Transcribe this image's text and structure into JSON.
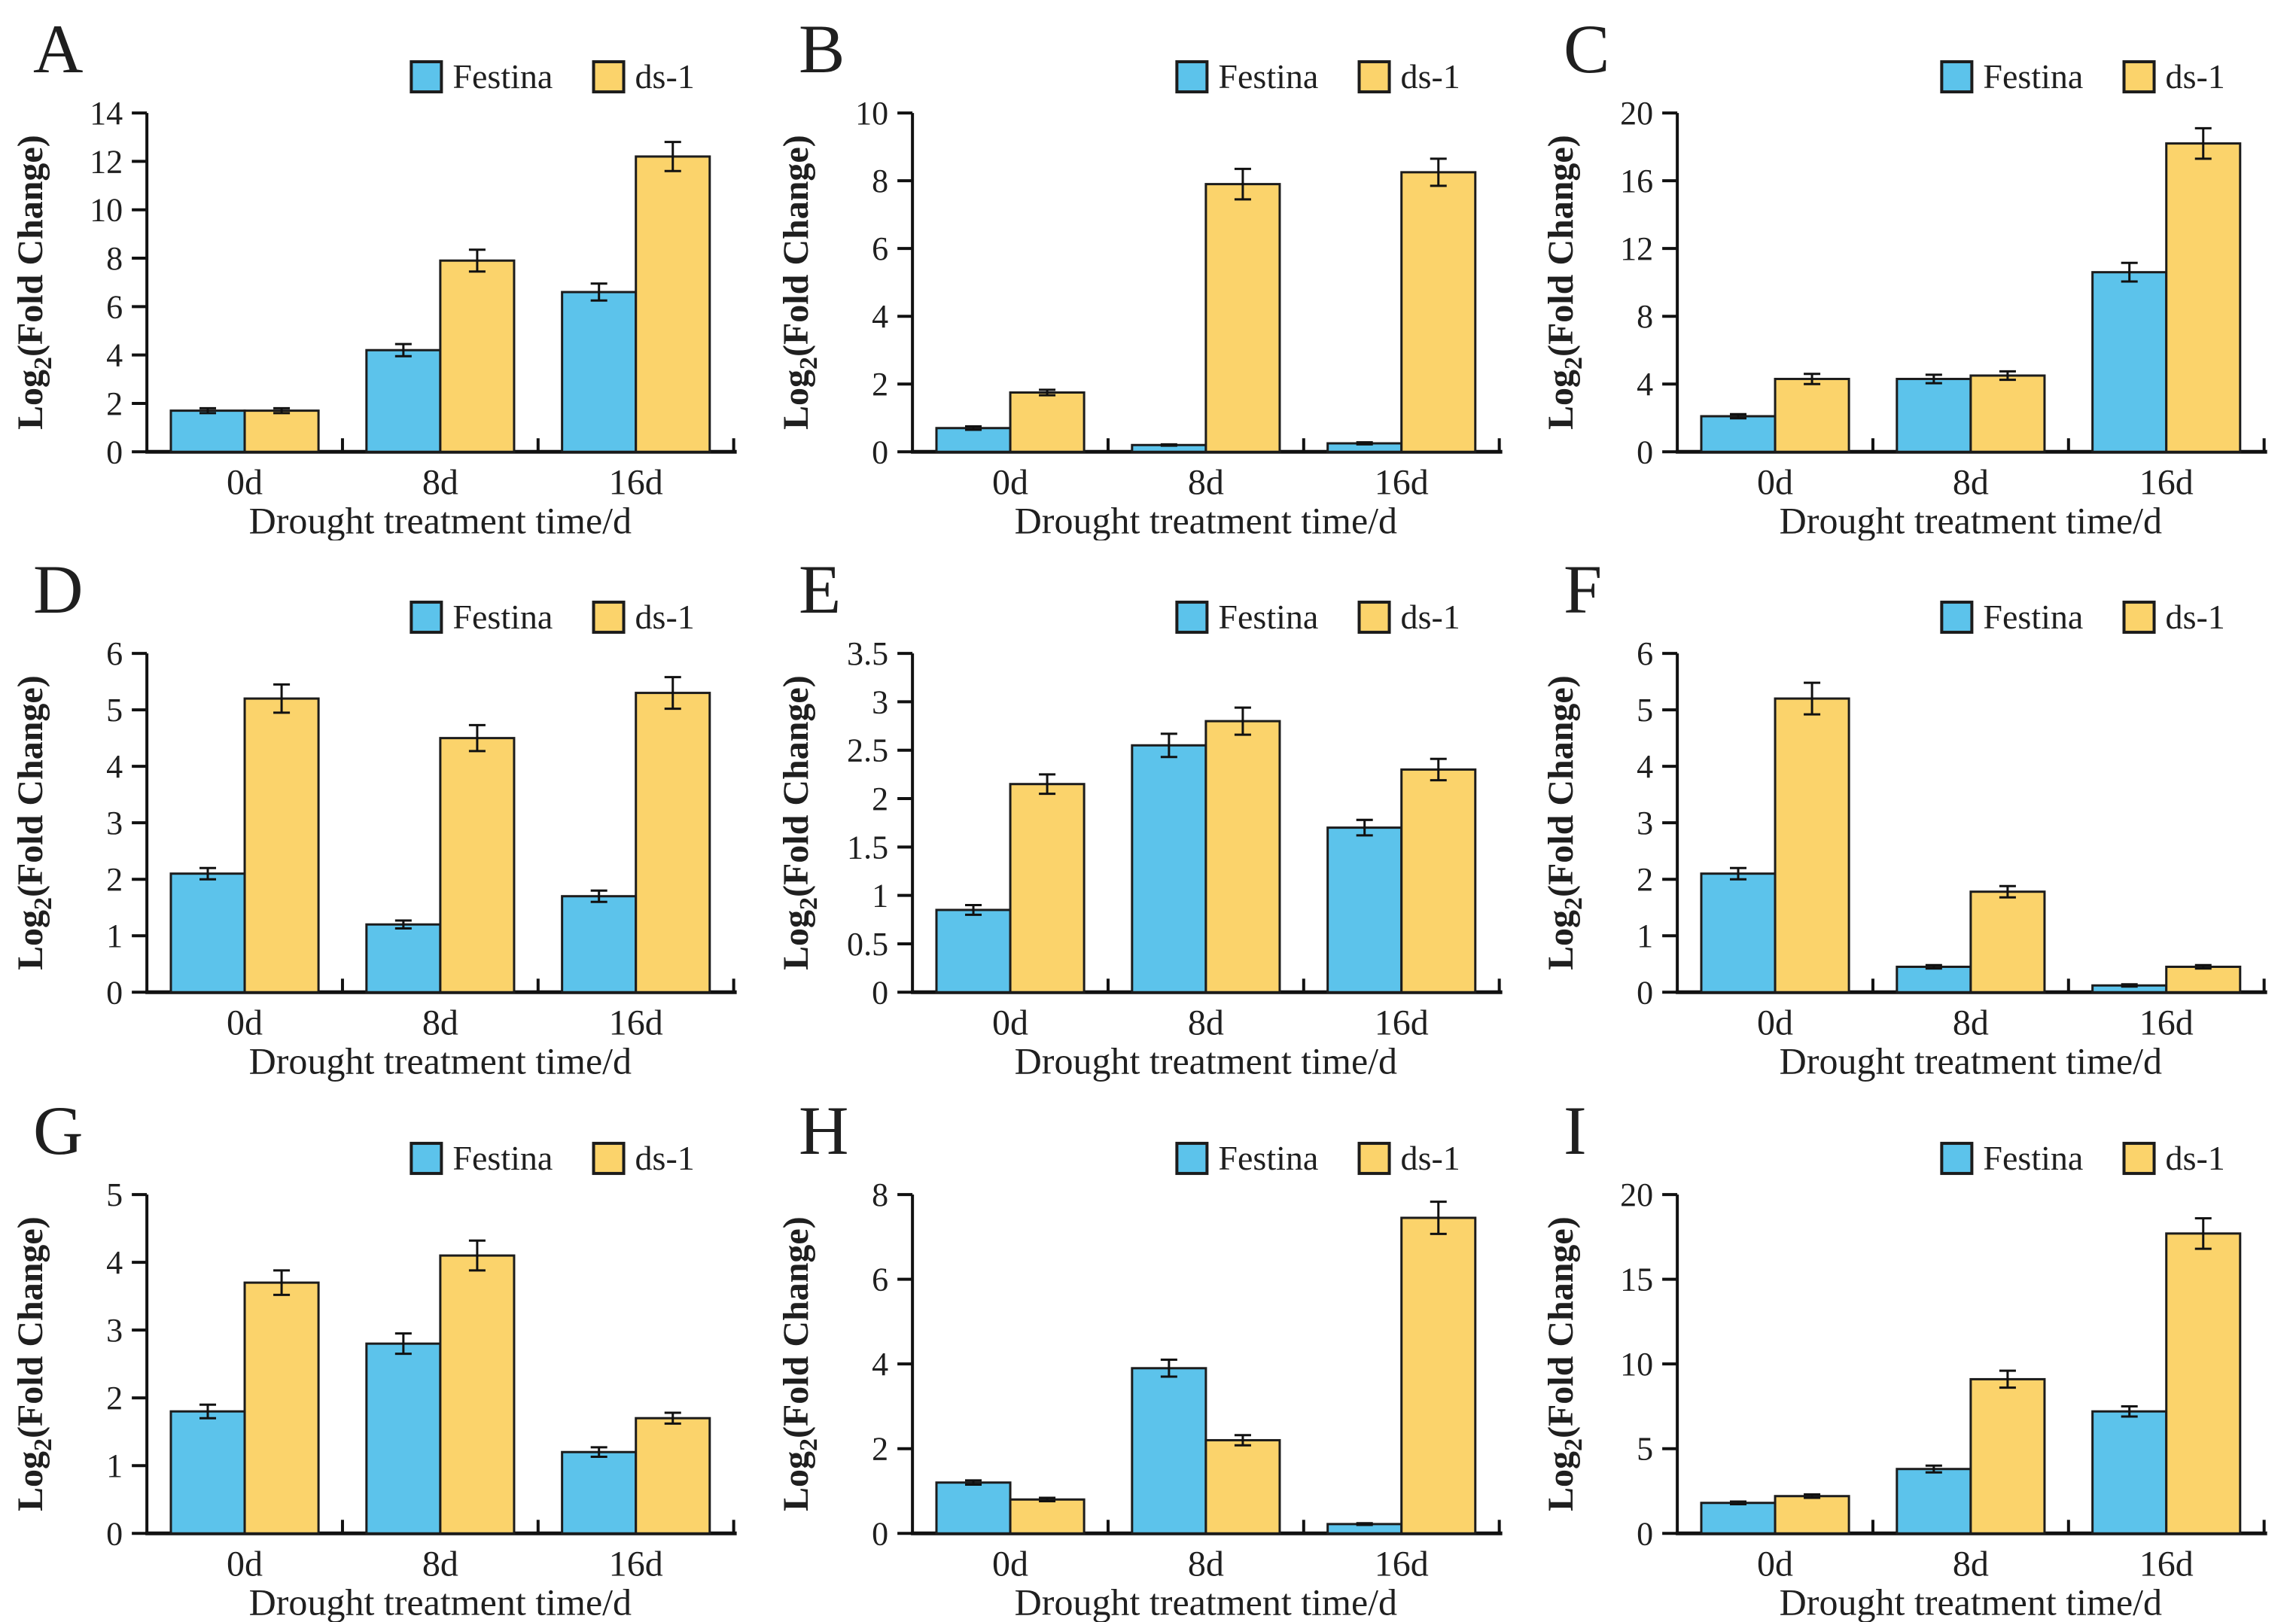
{
  "figure": {
    "series_names": [
      "Festina",
      "ds-1"
    ],
    "xlabel": "Drought treatment time/d",
    "ylabel_pre": "Log",
    "ylabel_sub": "2",
    "ylabel_post": "(Fold Change)",
    "categories": [
      "0d",
      "8d",
      "16d"
    ]
  },
  "style": {
    "festina_color": "#5cc3eb",
    "ds1_color": "#fbd36b",
    "bar_border": "#1c1c1c",
    "axis_color": "#111111",
    "text_color": "#1f1f1f",
    "background": "#ffffff"
  },
  "chart_data": [
    {
      "panel": "A",
      "type": "bar",
      "categories": [
        "0d",
        "8d",
        "16d"
      ],
      "series": [
        {
          "name": "Festina",
          "values": [
            1.7,
            4.2,
            6.6
          ],
          "errors": [
            0.1,
            0.25,
            0.35
          ]
        },
        {
          "name": "ds-1",
          "values": [
            1.7,
            7.9,
            12.2
          ],
          "errors": [
            0.1,
            0.45,
            0.6
          ]
        }
      ],
      "ylim": [
        0,
        14
      ],
      "ystep": 2,
      "grid": false,
      "legend_position": "top-right",
      "xlabel": "Drought treatment time/d",
      "ylabel": "Log2(Fold Change)"
    },
    {
      "panel": "B",
      "type": "bar",
      "categories": [
        "0d",
        "8d",
        "16d"
      ],
      "series": [
        {
          "name": "Festina",
          "values": [
            0.7,
            0.2,
            0.25
          ],
          "errors": [
            0.05,
            0.02,
            0.03
          ]
        },
        {
          "name": "ds-1",
          "values": [
            1.75,
            7.9,
            8.25
          ],
          "errors": [
            0.08,
            0.45,
            0.4
          ]
        }
      ],
      "ylim": [
        0,
        10
      ],
      "ystep": 2,
      "grid": false,
      "legend_position": "top-right",
      "xlabel": "Drought treatment time/d",
      "ylabel": "Log2(Fold Change)"
    },
    {
      "panel": "C",
      "type": "bar",
      "categories": [
        "0d",
        "8d",
        "16d"
      ],
      "series": [
        {
          "name": "Festina",
          "values": [
            2.1,
            4.3,
            10.6
          ],
          "errors": [
            0.12,
            0.25,
            0.55
          ]
        },
        {
          "name": "ds-1",
          "values": [
            4.3,
            4.5,
            18.2
          ],
          "errors": [
            0.3,
            0.25,
            0.9
          ]
        }
      ],
      "ylim": [
        0,
        20
      ],
      "ystep": 4,
      "grid": false,
      "legend_position": "top-right",
      "xlabel": "Drought treatment time/d",
      "ylabel": "Log2(Fold Change)"
    },
    {
      "panel": "D",
      "type": "bar",
      "categories": [
        "0d",
        "8d",
        "16d"
      ],
      "series": [
        {
          "name": "Festina",
          "values": [
            2.1,
            1.2,
            1.7
          ],
          "errors": [
            0.1,
            0.07,
            0.1
          ]
        },
        {
          "name": "ds-1",
          "values": [
            5.2,
            4.5,
            5.3
          ],
          "errors": [
            0.25,
            0.23,
            0.28
          ]
        }
      ],
      "ylim": [
        0,
        6
      ],
      "ystep": 1,
      "grid": false,
      "legend_position": "top-right",
      "xlabel": "Drought treatment time/d",
      "ylabel": "Log2(Fold Change)"
    },
    {
      "panel": "E",
      "type": "bar",
      "categories": [
        "0d",
        "8d",
        "16d"
      ],
      "series": [
        {
          "name": "Festina",
          "values": [
            0.85,
            2.55,
            1.7
          ],
          "errors": [
            0.05,
            0.12,
            0.08
          ]
        },
        {
          "name": "ds-1",
          "values": [
            2.15,
            2.8,
            2.3
          ],
          "errors": [
            0.1,
            0.14,
            0.11
          ]
        }
      ],
      "ylim": [
        0,
        3.5
      ],
      "ystep": 0.5,
      "grid": false,
      "legend_position": "top-right",
      "xlabel": "Drought treatment time/d",
      "ylabel": "Log2(Fold Change)"
    },
    {
      "panel": "F",
      "type": "bar",
      "categories": [
        "0d",
        "8d",
        "16d"
      ],
      "series": [
        {
          "name": "Festina",
          "values": [
            2.1,
            0.45,
            0.12
          ],
          "errors": [
            0.1,
            0.03,
            0.02
          ]
        },
        {
          "name": "ds-1",
          "values": [
            5.2,
            1.78,
            0.45
          ],
          "errors": [
            0.28,
            0.1,
            0.03
          ]
        }
      ],
      "ylim": [
        0,
        6
      ],
      "ystep": 1,
      "grid": false,
      "legend_position": "top-right",
      "xlabel": "Drought treatment time/d",
      "ylabel": "Log2(Fold Change)"
    },
    {
      "panel": "G",
      "type": "bar",
      "categories": [
        "0d",
        "8d",
        "16d"
      ],
      "series": [
        {
          "name": "Festina",
          "values": [
            1.8,
            2.8,
            1.2
          ],
          "errors": [
            0.1,
            0.15,
            0.07
          ]
        },
        {
          "name": "ds-1",
          "values": [
            3.7,
            4.1,
            1.7
          ],
          "errors": [
            0.18,
            0.22,
            0.08
          ]
        }
      ],
      "ylim": [
        0,
        5
      ],
      "ystep": 1,
      "grid": false,
      "legend_position": "top-right",
      "xlabel": "Drought treatment time/d",
      "ylabel": "Log2(Fold Change)"
    },
    {
      "panel": "H",
      "type": "bar",
      "categories": [
        "0d",
        "8d",
        "16d"
      ],
      "series": [
        {
          "name": "Festina",
          "values": [
            1.2,
            3.9,
            0.22
          ],
          "errors": [
            0.05,
            0.2,
            0.02
          ]
        },
        {
          "name": "ds-1",
          "values": [
            0.8,
            2.2,
            7.45
          ],
          "errors": [
            0.04,
            0.12,
            0.38
          ]
        }
      ],
      "ylim": [
        0,
        8
      ],
      "ystep": 2,
      "grid": false,
      "legend_position": "top-right",
      "xlabel": "Drought treatment time/d",
      "ylabel": "Log2(Fold Change)"
    },
    {
      "panel": "I",
      "type": "bar",
      "categories": [
        "0d",
        "8d",
        "16d"
      ],
      "series": [
        {
          "name": "Festina",
          "values": [
            1.8,
            3.8,
            7.2
          ],
          "errors": [
            0.08,
            0.2,
            0.3
          ]
        },
        {
          "name": "ds-1",
          "values": [
            2.2,
            9.1,
            17.7
          ],
          "errors": [
            0.1,
            0.5,
            0.9
          ]
        }
      ],
      "ylim": [
        0,
        20
      ],
      "ystep": 5,
      "grid": false,
      "legend_position": "top-right",
      "xlabel": "Drought treatment time/d",
      "ylabel": "Log2(Fold Change)"
    }
  ]
}
